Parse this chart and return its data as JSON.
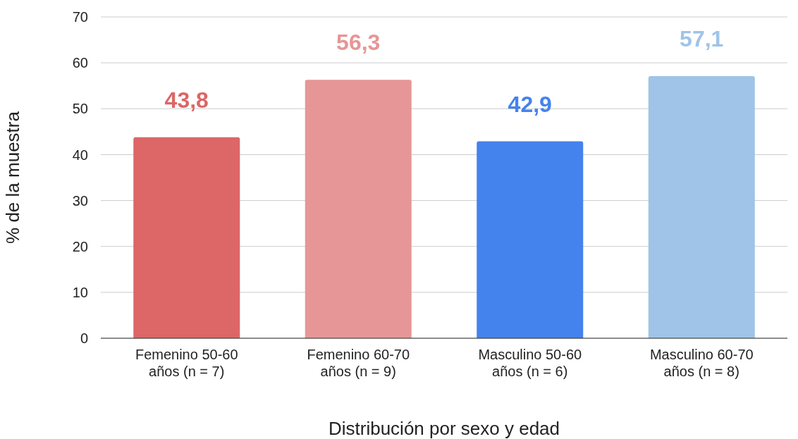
{
  "chart_data": {
    "type": "bar",
    "xlabel": "Distribución por sexo y edad",
    "ylabel": "% de la muestra",
    "categories": [
      "Femenino 50-60 años (n = 7)",
      "Femenino 60-70 años (n = 9)",
      "Masculino 50-60 años (n = 6)",
      "Masculino 60-70 años (n = 8)"
    ],
    "values": [
      43.8,
      56.3,
      42.9,
      57.1
    ],
    "colors": [
      "#dd6666",
      "#e69696",
      "#4482ee",
      "#9fc4e7"
    ],
    "ylim": [
      0,
      70
    ],
    "yticks": [
      0,
      10,
      20,
      30,
      40,
      50,
      60,
      70
    ],
    "value_labels": [
      "43,8",
      "56,3",
      "42,9",
      "57,1"
    ],
    "grid": "y"
  }
}
